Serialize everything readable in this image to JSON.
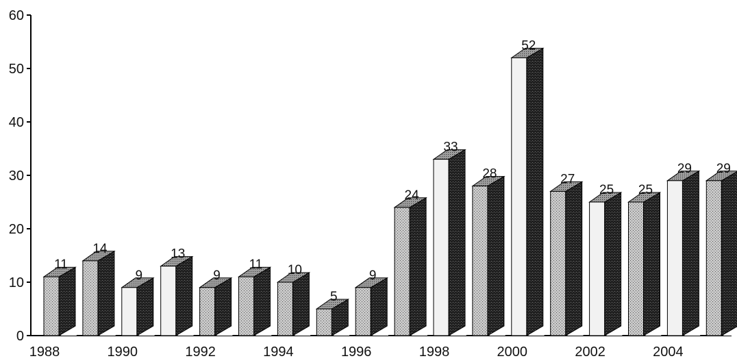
{
  "chart_data": {
    "type": "bar",
    "title": "",
    "xlabel": "",
    "ylabel": "",
    "ylim": [
      0,
      60
    ],
    "yticks": [
      0,
      10,
      20,
      30,
      40,
      50,
      60
    ],
    "grid": false,
    "categories": [
      "1988",
      "1989",
      "1990",
      "1991",
      "1992",
      "1993",
      "1994",
      "1995",
      "1996",
      "1997",
      "1998",
      "1999",
      "2000",
      "2001",
      "2002",
      "2003",
      "2004",
      "2005"
    ],
    "x_tick_labels": [
      "1988",
      "1990",
      "1992",
      "1994",
      "1996",
      "1998",
      "2000",
      "2002",
      "2004"
    ],
    "values": [
      11,
      14,
      9,
      13,
      9,
      11,
      10,
      5,
      9,
      24,
      33,
      28,
      52,
      27,
      25,
      25,
      29,
      29
    ],
    "data_labels": [
      "11",
      "14",
      "9",
      "13",
      "9",
      "11",
      "10",
      "5",
      "9",
      "24",
      "33",
      "28",
      "52",
      "27",
      "25",
      "25",
      "29",
      "29"
    ],
    "colors": {
      "front_light": "#f2f2f2",
      "front_mid": "#a8a8a8",
      "top": "#8f8f8f",
      "side": "#1f1f1f",
      "axis": "#000000"
    }
  }
}
